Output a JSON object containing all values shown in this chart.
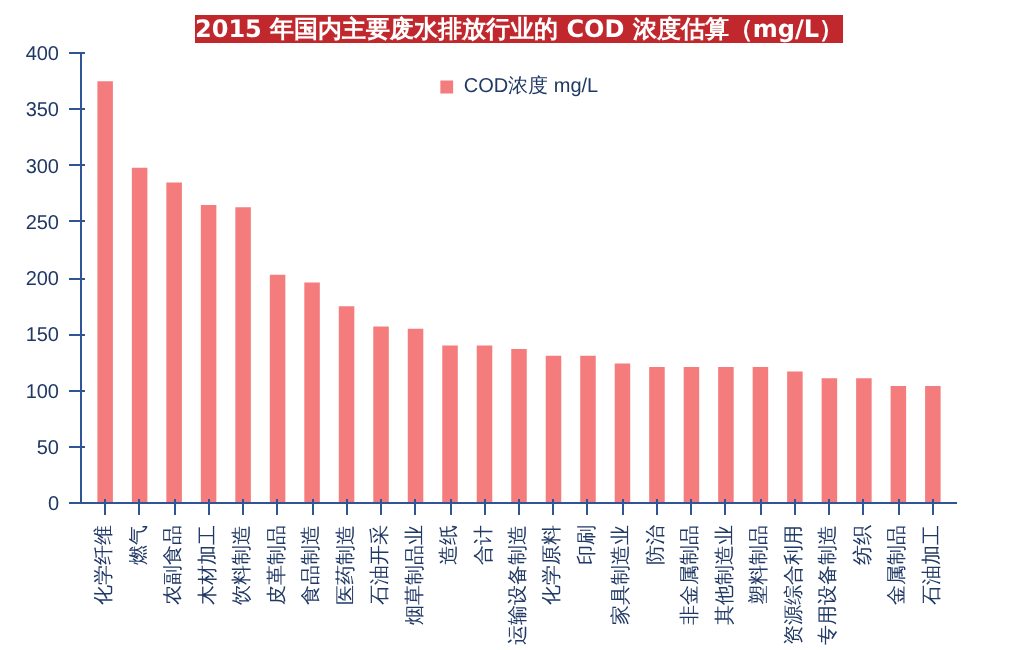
{
  "chart_data": {
    "type": "bar",
    "title": "2015 年国内主要废水排放行业的 COD 浓度估算（mg/L）",
    "categories": [
      "化学纤维",
      "燃气",
      "农副食品",
      "木材加工",
      "饮料制造",
      "皮革制品",
      "食品制造",
      "医药制造",
      "石油开采",
      "烟草制品业",
      "造纸",
      "合计",
      "运输设备制造",
      "化学原料",
      "印刷",
      "家具制造业",
      "防治",
      "非金属制品",
      "其他制造业",
      "塑料制品",
      "资源综合利用",
      "专用设备制造",
      "纺织",
      "金属制品",
      "石油加工"
    ],
    "series": [
      {
        "name": "COD浓度 mg/L",
        "color": "#f47c7c",
        "values": [
          375,
          298,
          285,
          265,
          263,
          203,
          196,
          175,
          157,
          155,
          140,
          140,
          137,
          131,
          131,
          124,
          121,
          121,
          121,
          121,
          117,
          111,
          111,
          104,
          104
        ]
      }
    ],
    "ylim": [
      0,
      400
    ],
    "yticks": [
      0,
      50,
      100,
      150,
      200,
      250,
      300,
      350,
      400
    ],
    "grid": false,
    "legend": "top"
  }
}
